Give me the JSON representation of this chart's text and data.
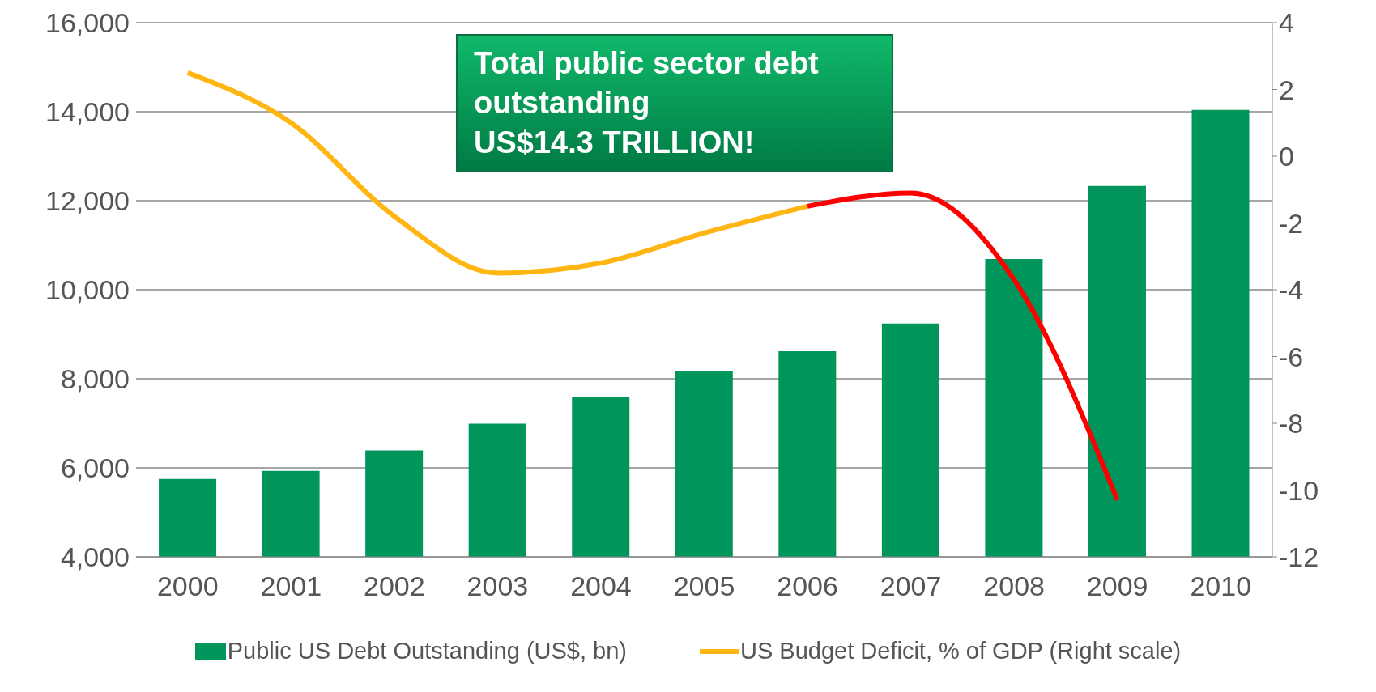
{
  "chart_data": {
    "type": "bar",
    "categories": [
      "2000",
      "2001",
      "2002",
      "2003",
      "2004",
      "2005",
      "2006",
      "2007",
      "2008",
      "2009",
      "2010"
    ],
    "series": [
      {
        "name": "Public US Debt Outstanding (US$, bn)",
        "color": "#00955a",
        "values": [
          5750,
          5930,
          6390,
          6990,
          7590,
          8180,
          8620,
          9240,
          10690,
          12330,
          14040
        ]
      },
      {
        "name": "US Budget Deficit, % of GDP (Right scale)",
        "type": "line",
        "axis": "y2",
        "color": "#ffb612",
        "values": [
          2.5,
          1.0,
          -1.8,
          -3.5,
          -3.2,
          -2.3,
          -1.5,
          null,
          null,
          null,
          null
        ]
      },
      {
        "type": "line",
        "axis": "y2",
        "color": "#ff0000",
        "values": [
          null,
          null,
          null,
          null,
          null,
          null,
          -1.5,
          -1.1,
          -3.7,
          -10.3,
          null
        ]
      }
    ],
    "ylim": [
      4000,
      16000
    ],
    "yticks": [
      {
        "value": 4000,
        "label": "4,000"
      },
      {
        "value": 6000,
        "label": "6,000"
      },
      {
        "value": 8000,
        "label": "8,000"
      },
      {
        "value": 10000,
        "label": "10,000"
      },
      {
        "value": 12000,
        "label": "12,000"
      },
      {
        "value": 14000,
        "label": "14,000"
      },
      {
        "value": 16000,
        "label": "16,000"
      }
    ],
    "y2lim": [
      -12,
      4
    ],
    "y2ticks": [
      -12,
      -10,
      -8,
      -6,
      -4,
      -2,
      0,
      2,
      4
    ],
    "grid": "y",
    "legend": "bottom",
    "marker": "none",
    "line_style": "solid",
    "annotations": [
      "Total public sector debt\noutstanding\nUS$14.3  TRILLION!"
    ]
  }
}
